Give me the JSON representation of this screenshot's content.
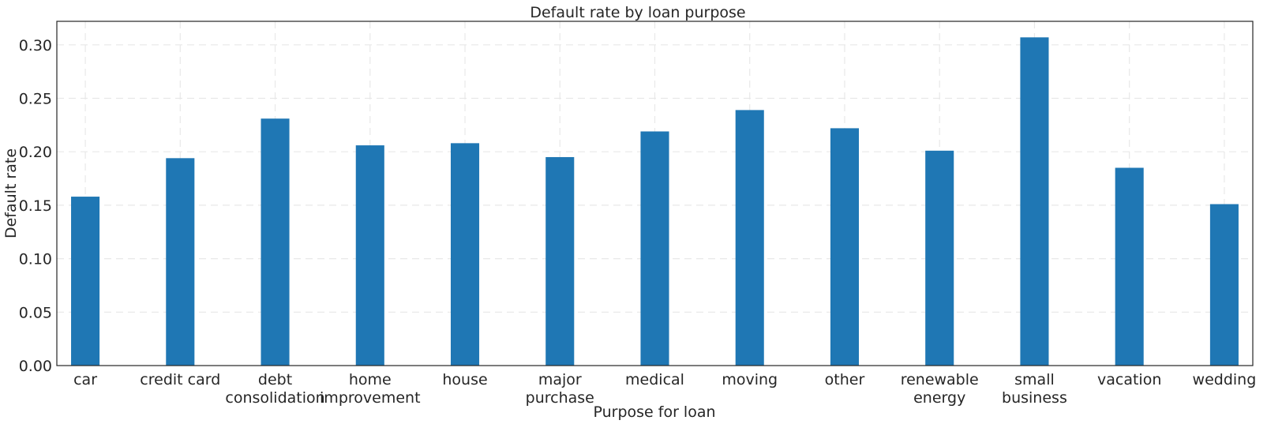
{
  "chart_data": {
    "type": "bar",
    "title": "Default rate by loan purpose",
    "xlabel": "Purpose for loan",
    "ylabel": "Default rate",
    "categories": [
      [
        "car"
      ],
      [
        "credit card"
      ],
      [
        "debt",
        "consolidation"
      ],
      [
        "home",
        "improvement"
      ],
      [
        "house"
      ],
      [
        "major",
        "purchase"
      ],
      [
        "medical"
      ],
      [
        "moving"
      ],
      [
        "other"
      ],
      [
        "renewable",
        "energy"
      ],
      [
        "small",
        "business"
      ],
      [
        "vacation"
      ],
      [
        "wedding"
      ]
    ],
    "values": [
      0.158,
      0.194,
      0.231,
      0.206,
      0.208,
      0.195,
      0.219,
      0.239,
      0.222,
      0.201,
      0.307,
      0.185,
      0.151
    ],
    "ylim": [
      0,
      0.322
    ],
    "yticks": [
      0.0,
      0.05,
      0.1,
      0.15,
      0.2,
      0.25,
      0.3
    ],
    "ytick_labels": [
      "0.00",
      "0.05",
      "0.10",
      "0.15",
      "0.20",
      "0.25",
      "0.30"
    ],
    "bar_color": "#1f77b4",
    "grid": true
  }
}
